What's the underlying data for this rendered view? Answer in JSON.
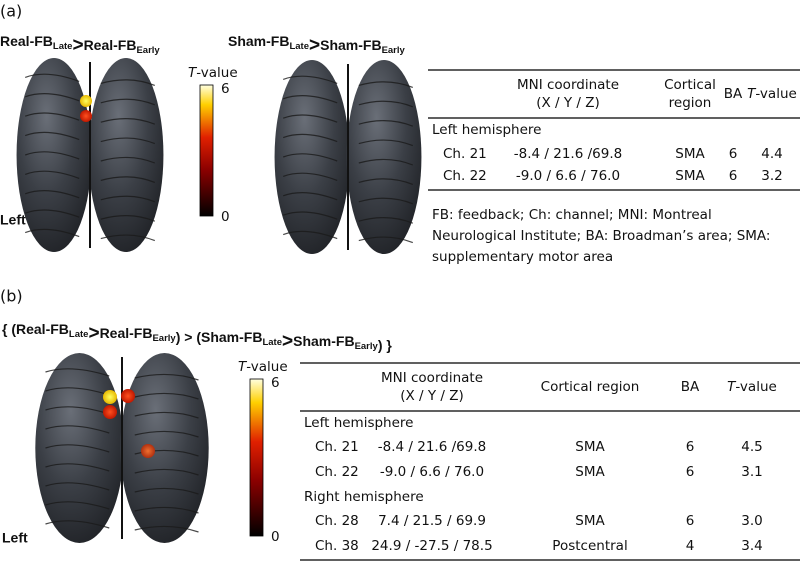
{
  "panel_a": {
    "label": "(a)",
    "contrast_1": {
      "left": {
        "text": "Real-FB",
        "sub": "Late"
      },
      "op": ">",
      "right": {
        "text": "Real-FB",
        "sub": "Early"
      }
    },
    "contrast_2": {
      "left": {
        "text": "Sham-FB",
        "sub": "Late"
      },
      "op": ">",
      "right": {
        "text": "Sham-FB",
        "sub": "Early"
      }
    },
    "colorbar": {
      "title_italic": "T",
      "title_rest": "-value",
      "max": 6,
      "min": 0
    },
    "side_label": "Left",
    "table": {
      "headers": {
        "coord": [
          "MNI coordinate",
          "(X / Y / Z)"
        ],
        "region": [
          "Cortical",
          "region"
        ],
        "ba": "BA",
        "t": {
          "italic": "T",
          "rest": "-value"
        }
      },
      "groups": [
        {
          "name": "Left hemisphere",
          "rows": [
            [
              "Ch. 21",
              "-8.4 / 21.6 /69.8",
              "SMA",
              "6",
              "4.4"
            ],
            [
              "Ch. 22",
              "-9.0 / 6.6 / 76.0",
              "SMA",
              "6",
              "3.2"
            ]
          ]
        }
      ],
      "footnote": [
        "FB: feedback; Ch: channel; MNI: Montreal",
        "Neurological Institute; BA: Broadman’s area; SMA:",
        "supplementary motor area"
      ]
    }
  },
  "panel_b": {
    "label": "(b)",
    "contrast": [
      {
        "text": "{ ("
      },
      {
        "text": "Real-FB",
        "sub": "Late"
      },
      {
        "text": ">"
      },
      {
        "text": "Real-FB",
        "sub": "Early"
      },
      {
        "text": ") > ("
      },
      {
        "text": "Sham-FB",
        "sub": "Late"
      },
      {
        "text": ">"
      },
      {
        "text": "Sham-FB",
        "sub": "Early"
      },
      {
        "text": ") }"
      }
    ],
    "colorbar": {
      "title_italic": "T",
      "title_rest": "-value",
      "max": 6,
      "min": 0
    },
    "side_label": "Left",
    "table": {
      "headers": {
        "coord": [
          "MNI coordinate",
          "(X / Y / Z)"
        ],
        "region": [
          "Cortical region"
        ],
        "ba": "BA",
        "t": {
          "italic": "T",
          "rest": "-value"
        }
      },
      "groups": [
        {
          "name": "Left hemisphere",
          "rows": [
            [
              "Ch. 21",
              "-8.4 / 21.6 /69.8",
              "SMA",
              "6",
              "4.5"
            ],
            [
              "Ch. 22",
              "-9.0 / 6.6 / 76.0",
              "SMA",
              "6",
              "3.1"
            ]
          ]
        },
        {
          "name": "Right hemisphere",
          "rows": [
            [
              "Ch. 28",
              "7.4 / 21.5 / 69.9",
              "SMA",
              "6",
              "3.0"
            ],
            [
              "Ch. 38",
              "24.9 / -27.5 / 78.5",
              "Postcentral",
              "4",
              "3.4"
            ]
          ]
        }
      ]
    }
  }
}
